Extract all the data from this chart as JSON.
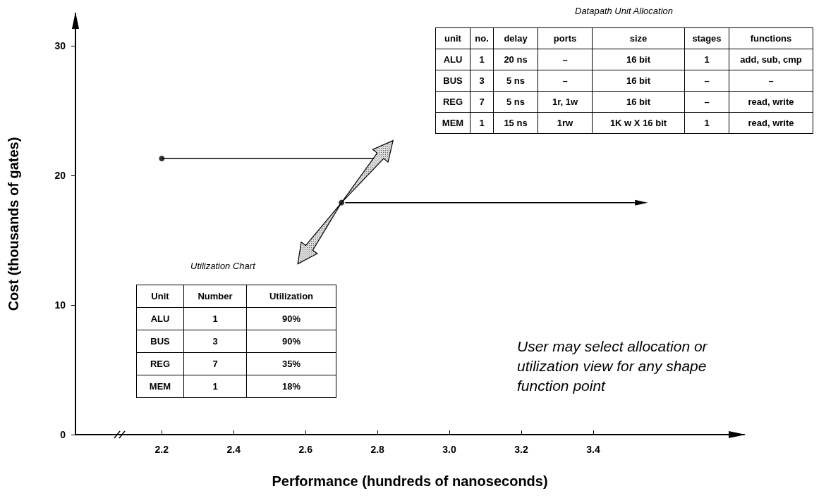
{
  "chart_data": {
    "type": "line",
    "xlabel": "Performance (hundreds of nanoseconds)",
    "ylabel": "Cost (thousands of gates)",
    "xlim": [
      1.96,
      3.82
    ],
    "xticks": [
      2.2,
      2.4,
      2.6,
      2.8,
      {
        "value": 3,
        "label": "3.0"
      },
      3.2,
      3.4
    ],
    "ylim": [
      0,
      32.5
    ],
    "yticks": [
      0,
      10,
      20,
      30
    ],
    "series": [
      {
        "color": "#000000",
        "x": [
          2.2,
          2.79
        ],
        "values": [
          21.3,
          21.3
        ]
      },
      {
        "type": "scatter",
        "color": "#000000",
        "x": [
          2.2,
          2.7
        ],
        "values": [
          21.3,
          17.9
        ]
      }
    ],
    "annotations": [
      "Datapath Unit Allocation",
      "unit",
      "no.",
      "delay",
      "ports",
      "size",
      "stages",
      "functions",
      "ALU",
      "1",
      "20 ns",
      "–",
      "16 bit",
      "1",
      "add, sub, cmp",
      "BUS",
      "3",
      "5 ns",
      "–",
      "16 bit",
      "–",
      "–",
      "REG",
      "7",
      "5 ns",
      "1r, 1w",
      "16 bit",
      "–",
      "read, write",
      "MEM",
      "1",
      "15 ns",
      "1rw",
      "1K w X 16 bit",
      "1",
      "read, write",
      "Utilization Chart",
      "Unit",
      "Number",
      "Utilization",
      "ALU",
      "1",
      "90%",
      "BUS",
      "3",
      "90%",
      "REG",
      "7",
      "35%",
      "MEM",
      "1",
      "18%",
      "User may select allocation or utilization view for any shape function point"
    ]
  }
}
